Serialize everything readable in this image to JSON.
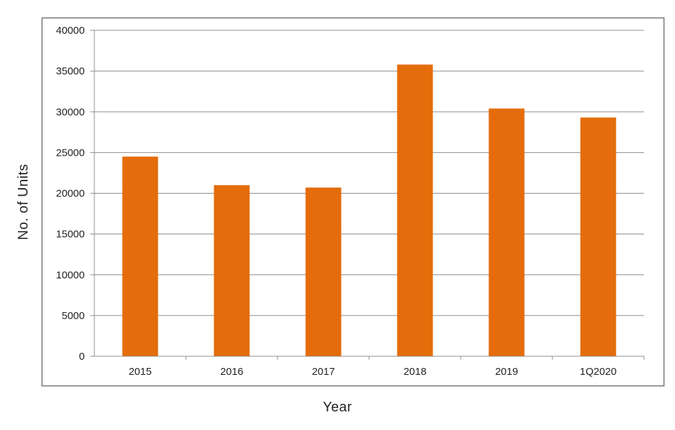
{
  "colors": {
    "bar": "#e46c0a",
    "grid": "#8c8c8c",
    "frame": "#555555",
    "text": "#222222"
  },
  "chart_data": {
    "type": "bar",
    "title": "",
    "xlabel": "Year",
    "ylabel": "No. of Units",
    "categories": [
      "2015",
      "2016",
      "2017",
      "2018",
      "2019",
      "1Q2020"
    ],
    "values": [
      24500,
      21000,
      20700,
      35800,
      30400,
      29300
    ],
    "ylim": [
      0,
      40000
    ],
    "yticks": [
      0,
      5000,
      10000,
      15000,
      20000,
      25000,
      30000,
      35000,
      40000
    ],
    "grid": true,
    "legend": "none"
  }
}
